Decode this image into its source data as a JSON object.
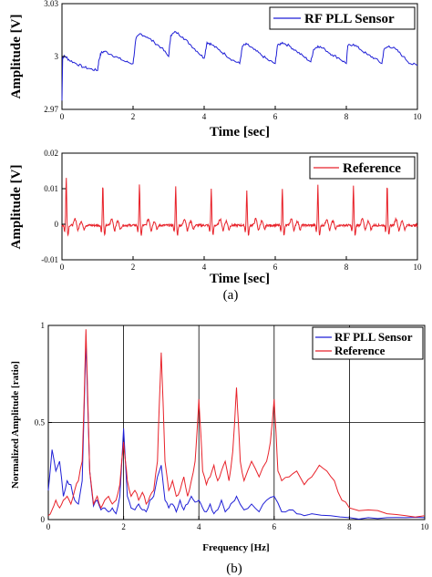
{
  "colors": {
    "sensor": "#1f1fd6",
    "reference": "#e8222a",
    "axis": "#000000",
    "grid": "#000000"
  },
  "chart_data": [
    {
      "type": "line",
      "panel": "a-top",
      "xlabel": "Time [sec]",
      "ylabel": "Amplitude [V]",
      "xlim": [
        0,
        10
      ],
      "ylim": [
        2.97,
        3.03
      ],
      "xticks": [
        0,
        2,
        4,
        6,
        8,
        10
      ],
      "yticks": [
        2.97,
        3,
        3.03
      ],
      "ytick_labels": [
        "2.97",
        "3",
        "3.03"
      ],
      "grid": false,
      "legend": "top-right",
      "series": [
        {
          "name": "RF PLL Sensor",
          "color": "#1f1fd6",
          "x": [
            0.0,
            0.02,
            0.1,
            0.2,
            0.4,
            0.6,
            0.8,
            1.0,
            1.04,
            1.1,
            1.2,
            1.4,
            1.6,
            1.8,
            2.0,
            2.08,
            2.2,
            2.4,
            2.6,
            2.8,
            3.0,
            3.06,
            3.2,
            3.4,
            3.6,
            3.8,
            4.0,
            4.08,
            4.2,
            4.4,
            4.6,
            4.8,
            5.0,
            5.08,
            5.2,
            5.4,
            5.6,
            5.8,
            6.0,
            6.06,
            6.2,
            6.4,
            6.6,
            6.8,
            7.0,
            7.08,
            7.2,
            7.4,
            7.6,
            7.8,
            8.0,
            8.04,
            8.2,
            8.4,
            8.6,
            8.8,
            9.0,
            9.06,
            9.2,
            9.4,
            9.6,
            9.8,
            10.0
          ],
          "values": [
            2.975,
            3.0,
            3.0,
            2.998,
            2.996,
            2.994,
            2.993,
            2.992,
            2.998,
            3.002,
            3.003,
            3.001,
            2.999,
            2.997,
            2.996,
            3.01,
            3.013,
            3.011,
            3.008,
            3.005,
            3.0,
            3.012,
            3.014,
            3.011,
            3.007,
            3.003,
            2.999,
            3.008,
            3.007,
            3.004,
            3.001,
            2.998,
            2.996,
            3.006,
            3.007,
            3.004,
            3.001,
            2.998,
            2.996,
            3.006,
            3.008,
            3.006,
            3.003,
            3.0,
            2.997,
            3.004,
            3.006,
            3.004,
            3.001,
            2.999,
            2.996,
            3.006,
            3.007,
            3.004,
            3.001,
            2.999,
            2.996,
            3.004,
            3.006,
            3.004,
            3.0,
            2.996,
            2.995
          ]
        }
      ]
    },
    {
      "type": "line",
      "panel": "a-bottom",
      "xlabel": "Time [sec]",
      "ylabel": "Amplitude [V]",
      "xlim": [
        0,
        10
      ],
      "ylim": [
        -0.01,
        0.02
      ],
      "xticks": [
        0,
        2,
        4,
        6,
        8,
        10
      ],
      "yticks": [
        -0.01,
        0,
        0.01,
        0.02
      ],
      "ytick_labels": [
        "-0.01",
        "0",
        "0.01",
        "0.02"
      ],
      "grid": false,
      "legend": "top-right",
      "series": [
        {
          "name": "Reference",
          "color": "#e8222a",
          "period": 1.0,
          "beat_times": [
            0.12,
            1.15,
            2.18,
            3.2,
            4.2,
            5.2,
            6.2,
            7.2,
            8.2,
            9.15
          ],
          "peak_values": [
            0.0135,
            0.0118,
            0.0118,
            0.0108,
            0.0102,
            0.0098,
            0.0104,
            0.0112,
            0.0112,
            0.0118
          ],
          "trough_value": -0.0035,
          "baseline": -0.0003
        }
      ]
    },
    {
      "type": "line",
      "panel": "b",
      "xlabel": "Frequency [Hz]",
      "ylabel": "Normalized Amplitude [ratio]",
      "xlim": [
        0,
        10
      ],
      "ylim": [
        0,
        1
      ],
      "xticks": [
        0,
        2,
        4,
        6,
        8,
        10
      ],
      "yticks": [
        0,
        0.5,
        1
      ],
      "ytick_labels": [
        "0",
        "0.5",
        "1"
      ],
      "grid": true,
      "legend": "top-right",
      "series": [
        {
          "name": "RF PLL Sensor",
          "color": "#1f1fd6",
          "x": [
            0.0,
            0.1,
            0.2,
            0.3,
            0.4,
            0.5,
            0.6,
            0.7,
            0.8,
            0.9,
            1.0,
            1.1,
            1.2,
            1.3,
            1.4,
            1.5,
            1.6,
            1.7,
            1.8,
            1.9,
            2.0,
            2.1,
            2.2,
            2.3,
            2.4,
            2.5,
            2.6,
            2.7,
            2.8,
            2.9,
            3.0,
            3.1,
            3.2,
            3.3,
            3.4,
            3.5,
            3.6,
            3.7,
            3.8,
            3.9,
            4.0,
            4.1,
            4.2,
            4.3,
            4.4,
            4.5,
            4.6,
            4.7,
            4.8,
            4.9,
            5.0,
            5.2,
            5.4,
            5.6,
            5.8,
            6.0,
            6.2,
            6.4,
            6.6,
            6.8,
            7.0,
            7.5,
            8.0,
            8.5,
            9.0,
            9.5,
            10.0
          ],
          "values": [
            0.15,
            0.36,
            0.25,
            0.3,
            0.12,
            0.2,
            0.18,
            0.1,
            0.08,
            0.2,
            0.92,
            0.25,
            0.07,
            0.1,
            0.05,
            0.06,
            0.04,
            0.06,
            0.03,
            0.12,
            0.47,
            0.12,
            0.06,
            0.05,
            0.08,
            0.05,
            0.04,
            0.1,
            0.12,
            0.22,
            0.28,
            0.1,
            0.06,
            0.08,
            0.04,
            0.1,
            0.05,
            0.08,
            0.12,
            0.09,
            0.1,
            0.06,
            0.04,
            0.08,
            0.03,
            0.05,
            0.1,
            0.04,
            0.06,
            0.09,
            0.12,
            0.05,
            0.08,
            0.04,
            0.1,
            0.12,
            0.04,
            0.05,
            0.03,
            0.02,
            0.03,
            0.02,
            0.01,
            0.01,
            0.01,
            0.01,
            0.01
          ]
        },
        {
          "name": "Reference",
          "color": "#e8222a",
          "x": [
            0.0,
            0.1,
            0.2,
            0.3,
            0.4,
            0.5,
            0.6,
            0.7,
            0.8,
            0.9,
            0.95,
            1.0,
            1.05,
            1.1,
            1.2,
            1.3,
            1.4,
            1.5,
            1.6,
            1.7,
            1.8,
            1.9,
            1.95,
            2.0,
            2.05,
            2.1,
            2.2,
            2.3,
            2.4,
            2.5,
            2.6,
            2.7,
            2.8,
            2.9,
            2.95,
            3.0,
            3.05,
            3.1,
            3.2,
            3.3,
            3.4,
            3.5,
            3.6,
            3.7,
            3.8,
            3.9,
            3.95,
            4.0,
            4.05,
            4.1,
            4.2,
            4.3,
            4.4,
            4.5,
            4.6,
            4.7,
            4.8,
            4.9,
            4.95,
            5.0,
            5.05,
            5.1,
            5.2,
            5.4,
            5.6,
            5.8,
            5.9,
            5.95,
            6.0,
            6.05,
            6.1,
            6.2,
            6.4,
            6.6,
            6.8,
            7.0,
            7.2,
            7.4,
            7.6,
            7.8,
            8.0,
            8.5,
            9.0,
            9.5,
            10.0
          ],
          "values": [
            0.02,
            0.05,
            0.1,
            0.06,
            0.1,
            0.12,
            0.08,
            0.15,
            0.2,
            0.3,
            0.6,
            0.98,
            0.62,
            0.25,
            0.08,
            0.12,
            0.06,
            0.1,
            0.12,
            0.08,
            0.1,
            0.18,
            0.3,
            0.4,
            0.3,
            0.2,
            0.12,
            0.15,
            0.1,
            0.14,
            0.08,
            0.12,
            0.15,
            0.3,
            0.6,
            0.86,
            0.6,
            0.3,
            0.15,
            0.2,
            0.12,
            0.15,
            0.22,
            0.12,
            0.2,
            0.3,
            0.45,
            0.62,
            0.45,
            0.25,
            0.18,
            0.22,
            0.28,
            0.2,
            0.25,
            0.3,
            0.2,
            0.35,
            0.5,
            0.68,
            0.5,
            0.3,
            0.2,
            0.3,
            0.22,
            0.3,
            0.4,
            0.5,
            0.62,
            0.45,
            0.25,
            0.2,
            0.22,
            0.25,
            0.18,
            0.22,
            0.28,
            0.25,
            0.2,
            0.1,
            0.06,
            0.05,
            0.03,
            0.02,
            0.02
          ]
        }
      ]
    }
  ],
  "captions": {
    "a": "(a)",
    "b": "(b)"
  }
}
